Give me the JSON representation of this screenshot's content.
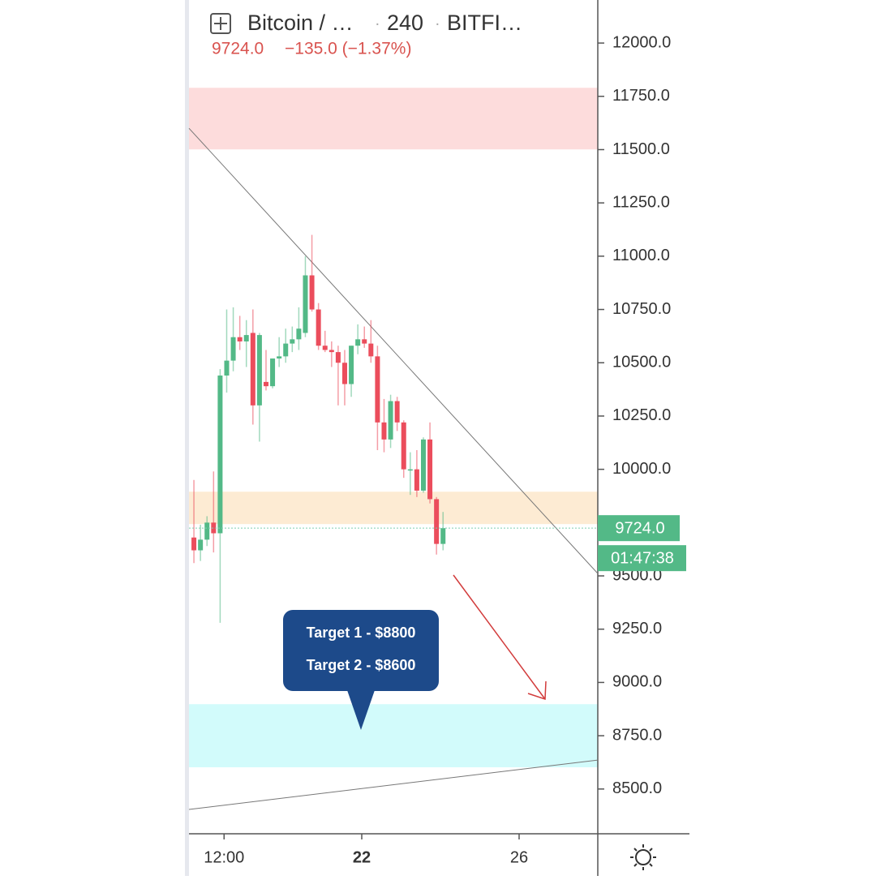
{
  "header": {
    "symbol": "Bitcoin / …",
    "interval": "240",
    "exchange": "BITFI…",
    "price": "9724.0",
    "change": "−135.0 (−1.37%)"
  },
  "chart_data": {
    "type": "candlestick",
    "up_color": "#53b987",
    "down_color": "#eb4d5c",
    "open": [
      9680,
      9620,
      9670,
      9750,
      9700,
      10440,
      10510,
      10620,
      10600,
      10640,
      10300,
      10410,
      10390,
      10520,
      10530,
      10590,
      10610,
      10640,
      10910,
      10750,
      10580,
      10560,
      10550,
      10500,
      10400,
      10580,
      10610,
      10590,
      10530,
      10220,
      10140,
      10320,
      10220,
      10000,
      10000,
      9900,
      10140,
      9860,
      9650
    ],
    "high": [
      9950,
      9740,
      9780,
      9990,
      10470,
      10750,
      10760,
      10720,
      10700,
      10750,
      10640,
      10560,
      10520,
      10620,
      10660,
      10670,
      10760,
      11000,
      11100,
      10780,
      10650,
      10600,
      10580,
      10560,
      10580,
      10680,
      10670,
      10700,
      10580,
      10330,
      10350,
      10340,
      10230,
      10080,
      10090,
      10150,
      10220,
      9870,
      9800
    ],
    "low": [
      9560,
      9570,
      9640,
      9610,
      9280,
      10360,
      10460,
      10560,
      10480,
      10210,
      10130,
      10370,
      10380,
      10480,
      10500,
      10550,
      10560,
      10620,
      10740,
      10560,
      10550,
      10480,
      10300,
      10300,
      10340,
      10540,
      10570,
      10500,
      10090,
      10080,
      10100,
      10180,
      9960,
      9880,
      9870,
      9890,
      9840,
      9600,
      9620
    ],
    "close": [
      9620,
      9670,
      9750,
      9700,
      10440,
      10510,
      10620,
      10600,
      10630,
      10300,
      10630,
      10390,
      10520,
      10530,
      10590,
      10610,
      10660,
      10910,
      10750,
      10580,
      10560,
      10550,
      10500,
      10400,
      10580,
      10610,
      10590,
      10530,
      10220,
      10140,
      10320,
      10220,
      10000,
      10000,
      9900,
      10140,
      9860,
      9650,
      9724
    ],
    "xlim": [
      -0.75,
      61.6
    ],
    "xticks": [
      {
        "value": 4.6,
        "label": "12:00"
      },
      {
        "value": 25.6,
        "label": "22"
      },
      {
        "value": 49.6,
        "label": "26"
      }
    ],
    "ylim": [
      8290,
      12202
    ],
    "yticks": [
      {
        "value": 8500,
        "label": "8500.0"
      },
      {
        "value": 8750,
        "label": "8750.0"
      },
      {
        "value": 9000,
        "label": "9000.0"
      },
      {
        "value": 9250,
        "label": "9250.0"
      },
      {
        "value": 9500,
        "label": "9500.0"
      },
      {
        "value": 10000,
        "label": "10000.0"
      },
      {
        "value": 10250,
        "label": "10250.0"
      },
      {
        "value": 10500,
        "label": "10500.0"
      },
      {
        "value": 10750,
        "label": "10750.0"
      },
      {
        "value": 11000,
        "label": "11000.0"
      },
      {
        "value": 11250,
        "label": "11250.0"
      },
      {
        "value": 11500,
        "label": "11500.0"
      },
      {
        "value": 11750,
        "label": "11750.0"
      },
      {
        "value": 12000,
        "label": "12000.0"
      }
    ],
    "last_price": {
      "value": 9724,
      "label": "9724.0"
    },
    "countdown": "01:47:38",
    "zones": [
      {
        "range": [
          11501,
          11790
        ],
        "color": "#fddcdc"
      },
      {
        "range": [
          9743,
          9895
        ],
        "color": "#fdebd3"
      },
      {
        "range": [
          8602,
          8898
        ],
        "color": "#d2fbfb"
      }
    ],
    "lines": [
      {
        "x": [
          -0.75,
          61.6
        ],
        "y": [
          11600,
          9511
        ]
      },
      {
        "x": [
          -0.75,
          61.6
        ],
        "y": [
          8404,
          8636
        ]
      }
    ],
    "annotations": [
      "Target 1 - $8800",
      "Target 2 - $8600"
    ]
  }
}
